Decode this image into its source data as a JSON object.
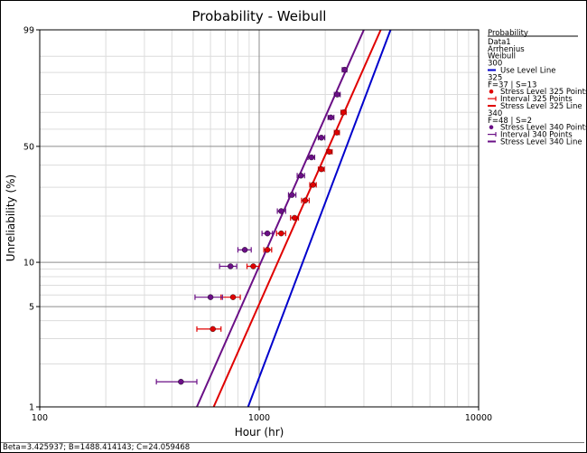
{
  "chart_data": {
    "type": "scatter",
    "title": "Probability - Weibull",
    "xlabel": "Hour (hr)",
    "ylabel": "Unreliability (%)",
    "x_scale": "log",
    "y_scale": "weibull",
    "xlim": [
      100,
      10000
    ],
    "ylim": [
      1,
      99
    ],
    "x_ticks": [
      "100",
      "1000",
      "10000"
    ],
    "y_ticks": [
      "1",
      "5",
      "10",
      "50",
      "99"
    ],
    "grid": true,
    "legend": {
      "placement": "right",
      "lines": [
        "Probability",
        "Data1",
        "Arrhenius",
        "Weibull",
        "300",
        "325",
        "F=37 | S=13",
        "340",
        "F=48 | S=2"
      ],
      "entries": [
        {
          "label": "Use Level Line"
        },
        {
          "label": "Stress Level 325 Points"
        },
        {
          "label": "Interval 325 Points"
        },
        {
          "label": "Stress Level 325 Line"
        },
        {
          "label": "Stress Level 340 Points"
        },
        {
          "label": "Interval 340 Points"
        },
        {
          "label": "Stress Level 340 Line"
        }
      ]
    },
    "lines": [
      {
        "name": "Use Level Line",
        "color": "#0000cc",
        "points": [
          [
            890,
            1
          ],
          [
            3970,
            99
          ]
        ]
      },
      {
        "name": "Stress Level 325 Line",
        "color": "#e00000",
        "points": [
          [
            620,
            1
          ],
          [
            3580,
            99
          ]
        ]
      },
      {
        "name": "Stress Level 340 Line",
        "color": "#6a0f86",
        "points": [
          [
            520,
            1
          ],
          [
            3000,
            99
          ]
        ]
      }
    ],
    "series": [
      {
        "name": "Stress Level 325 Points",
        "color": "#e00000",
        "points": [
          {
            "x": 615,
            "y": 3.5,
            "lo": 520,
            "hi": 670
          },
          {
            "x": 760,
            "y": 5.8,
            "lo": 670,
            "hi": 820
          },
          {
            "x": 940,
            "y": 9.4,
            "lo": 880,
            "hi": 1000
          },
          {
            "x": 1090,
            "y": 12.1,
            "lo": 1050,
            "hi": 1140
          },
          {
            "x": 1260,
            "y": 15.5,
            "lo": 1200,
            "hi": 1320
          },
          {
            "x": 1450,
            "y": 19.5,
            "lo": 1390,
            "hi": 1510
          },
          {
            "x": 1620,
            "y": 25,
            "lo": 1560,
            "hi": 1690
          },
          {
            "x": 1760,
            "y": 31,
            "lo": 1700,
            "hi": 1820
          },
          {
            "x": 1920,
            "y": 38,
            "lo": 1860,
            "hi": 1980
          },
          {
            "x": 2090,
            "y": 47,
            "lo": 2030,
            "hi": 2150
          },
          {
            "x": 2260,
            "y": 58,
            "lo": 2200,
            "hi": 2320
          },
          {
            "x": 2420,
            "y": 70,
            "lo": 2360,
            "hi": 2490
          }
        ]
      },
      {
        "name": "Stress Level 340 Points",
        "color": "#6a0f86",
        "points": [
          {
            "x": 440,
            "y": 1.5,
            "lo": 340,
            "hi": 520
          },
          {
            "x": 600,
            "y": 5.8,
            "lo": 510,
            "hi": 680
          },
          {
            "x": 740,
            "y": 9.4,
            "lo": 660,
            "hi": 790
          },
          {
            "x": 860,
            "y": 12.1,
            "lo": 800,
            "hi": 920
          },
          {
            "x": 1090,
            "y": 15.5,
            "lo": 1030,
            "hi": 1150
          },
          {
            "x": 1260,
            "y": 21.5,
            "lo": 1210,
            "hi": 1320
          },
          {
            "x": 1410,
            "y": 27,
            "lo": 1360,
            "hi": 1470
          },
          {
            "x": 1550,
            "y": 35,
            "lo": 1490,
            "hi": 1610
          },
          {
            "x": 1730,
            "y": 44,
            "lo": 1670,
            "hi": 1790
          },
          {
            "x": 1920,
            "y": 55,
            "lo": 1860,
            "hi": 1990
          },
          {
            "x": 2120,
            "y": 67,
            "lo": 2060,
            "hi": 2190
          },
          {
            "x": 2270,
            "y": 80,
            "lo": 2200,
            "hi": 2340
          },
          {
            "x": 2450,
            "y": 91,
            "lo": 2390,
            "hi": 2510
          }
        ]
      }
    ]
  },
  "footer": {
    "text": "Beta=3.425937; B=1488.414143; C=24.059468"
  }
}
